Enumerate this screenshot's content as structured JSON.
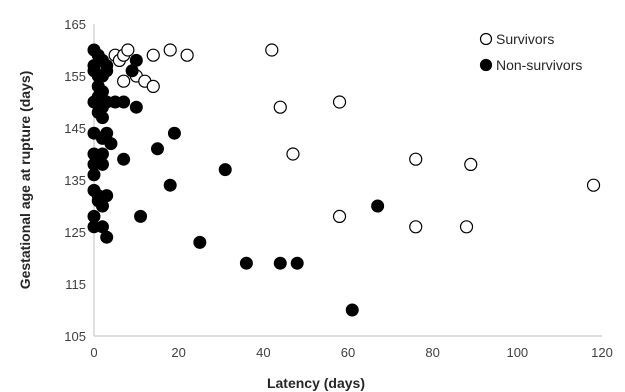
{
  "chart_data": {
    "type": "scatter",
    "xlabel": "Latency (days)",
    "ylabel": "Gestational age at rupture (days)",
    "xlim": [
      0,
      120
    ],
    "ylim": [
      105,
      165
    ],
    "xticks": [
      0,
      20,
      40,
      60,
      80,
      100,
      120
    ],
    "yticks": [
      105,
      115,
      125,
      135,
      145,
      155,
      165
    ],
    "grid": false,
    "legend": "top-right",
    "series": [
      {
        "name": "Survivors",
        "marker": "open-circle",
        "points": [
          [
            5,
            159
          ],
          [
            6,
            158
          ],
          [
            7,
            159
          ],
          [
            8,
            160
          ],
          [
            7,
            154
          ],
          [
            10,
            155
          ],
          [
            12,
            154
          ],
          [
            14,
            153
          ],
          [
            14,
            159
          ],
          [
            18,
            160
          ],
          [
            22,
            159
          ],
          [
            42,
            160
          ],
          [
            44,
            149
          ],
          [
            47,
            140
          ],
          [
            58,
            150
          ],
          [
            58,
            128
          ],
          [
            76,
            139
          ],
          [
            76,
            126
          ],
          [
            88,
            126
          ],
          [
            89,
            138
          ],
          [
            118,
            134
          ]
        ]
      },
      {
        "name": "Non-survivors",
        "marker": "filled-circle",
        "points": [
          [
            0,
            160
          ],
          [
            1,
            159
          ],
          [
            2,
            158
          ],
          [
            0,
            157
          ],
          [
            3,
            157
          ],
          [
            0,
            156
          ],
          [
            1,
            155
          ],
          [
            2,
            155
          ],
          [
            3,
            156
          ],
          [
            1,
            153
          ],
          [
            2,
            152
          ],
          [
            1,
            151
          ],
          [
            3,
            150
          ],
          [
            0,
            150
          ],
          [
            2,
            149
          ],
          [
            1,
            148
          ],
          [
            2,
            147
          ],
          [
            5,
            150
          ],
          [
            7,
            150
          ],
          [
            10,
            149
          ],
          [
            9,
            156
          ],
          [
            10,
            158
          ],
          [
            0,
            144
          ],
          [
            2,
            143
          ],
          [
            3,
            144
          ],
          [
            4,
            142
          ],
          [
            0,
            140
          ],
          [
            1,
            139
          ],
          [
            2,
            140
          ],
          [
            0,
            138
          ],
          [
            2,
            138
          ],
          [
            0,
            136
          ],
          [
            7,
            139
          ],
          [
            0,
            133
          ],
          [
            1,
            132
          ],
          [
            3,
            132
          ],
          [
            1,
            131
          ],
          [
            2,
            130
          ],
          [
            0,
            128
          ],
          [
            0,
            126
          ],
          [
            2,
            126
          ],
          [
            3,
            124
          ],
          [
            11,
            128
          ],
          [
            15,
            141
          ],
          [
            19,
            144
          ],
          [
            18,
            134
          ],
          [
            25,
            123
          ],
          [
            31,
            137
          ],
          [
            36,
            119
          ],
          [
            44,
            119
          ],
          [
            48,
            119
          ],
          [
            61,
            110
          ],
          [
            67,
            130
          ]
        ]
      }
    ]
  }
}
